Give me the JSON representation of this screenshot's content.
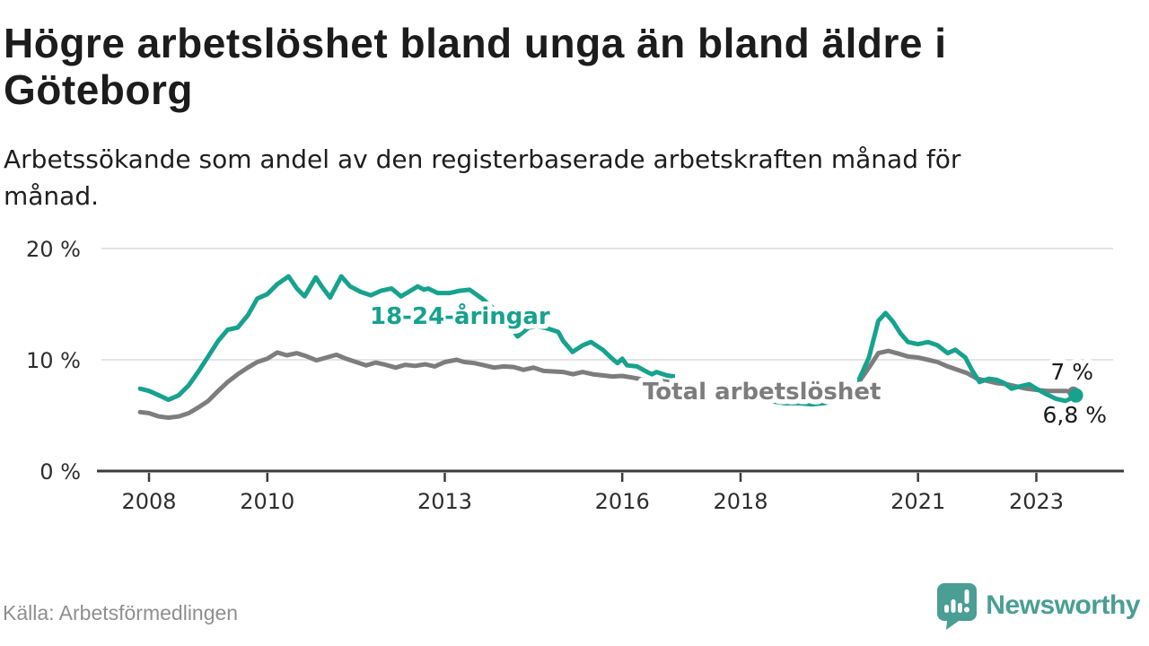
{
  "header": {
    "title": "Högre arbetslöshet bland unga än bland äldre i Göteborg",
    "subtitle": "Arbetssökande som andel av den registerbaserade arbetskraften månad för månad."
  },
  "footer": {
    "source": "Källa: Arbetsförmedlingen",
    "brand_name": "Newsworthy",
    "brand_icon": "newsworthy-speech-bubble-bar-chart-icon"
  },
  "colors": {
    "youth_line": "#17A28E",
    "total_line": "#7D7D7D",
    "grid": "#DCDCDC",
    "axis": "#3B3B3B",
    "tick_text": "#2E2E2E",
    "title_text": "#1C1C1C",
    "source_text": "#8F8F8F",
    "brand_teal": "#4A9E94"
  },
  "chart_data": {
    "type": "line",
    "title": "Högre arbetslöshet bland unga än bland äldre i Göteborg",
    "subtitle": "Arbetssökande som andel av den registerbaserade arbetskraften månad för månad.",
    "xlabel": "",
    "ylabel": "",
    "y_unit": "%",
    "ylim": [
      0,
      20
    ],
    "xlim": [
      2007.1,
      2024.5
    ],
    "grid": "horizontal",
    "legend_position": "inline-labels",
    "y_axis": {
      "ticks": [
        {
          "value": 0,
          "label": "0 %"
        },
        {
          "value": 10,
          "label": "10 %"
        },
        {
          "value": 20,
          "label": "20 %"
        }
      ]
    },
    "x_axis": {
      "ticks": [
        {
          "value": 2008,
          "label": "2008"
        },
        {
          "value": 2010,
          "label": "2010"
        },
        {
          "value": 2013,
          "label": "2013"
        },
        {
          "value": 2016,
          "label": "2016"
        },
        {
          "value": 2018,
          "label": "2018"
        },
        {
          "value": 2021,
          "label": "2021"
        },
        {
          "value": 2023,
          "label": "2023"
        }
      ]
    },
    "series": [
      {
        "key": "total",
        "name": "Total arbetslöshet",
        "color": "#7D7D7D",
        "end_value_label": "7 %",
        "points": [
          [
            2007.85,
            5.3
          ],
          [
            2008.0,
            5.2
          ],
          [
            2008.17,
            4.9
          ],
          [
            2008.33,
            4.8
          ],
          [
            2008.5,
            4.9
          ],
          [
            2008.67,
            5.2
          ],
          [
            2008.83,
            5.7
          ],
          [
            2009.0,
            6.3
          ],
          [
            2009.17,
            7.2
          ],
          [
            2009.33,
            8.0
          ],
          [
            2009.5,
            8.7
          ],
          [
            2009.67,
            9.3
          ],
          [
            2009.83,
            9.8
          ],
          [
            2010.0,
            10.1
          ],
          [
            2010.17,
            10.65
          ],
          [
            2010.33,
            10.4
          ],
          [
            2010.5,
            10.6
          ],
          [
            2010.67,
            10.3
          ],
          [
            2010.83,
            9.95
          ],
          [
            2011.0,
            10.2
          ],
          [
            2011.17,
            10.45
          ],
          [
            2011.33,
            10.1
          ],
          [
            2011.5,
            9.8
          ],
          [
            2011.67,
            9.5
          ],
          [
            2011.83,
            9.75
          ],
          [
            2012.0,
            9.55
          ],
          [
            2012.17,
            9.3
          ],
          [
            2012.33,
            9.55
          ],
          [
            2012.5,
            9.45
          ],
          [
            2012.67,
            9.6
          ],
          [
            2012.83,
            9.4
          ],
          [
            2013.0,
            9.8
          ],
          [
            2013.2,
            10.0
          ],
          [
            2013.33,
            9.8
          ],
          [
            2013.5,
            9.7
          ],
          [
            2013.67,
            9.5
          ],
          [
            2013.83,
            9.3
          ],
          [
            2014.0,
            9.4
          ],
          [
            2014.17,
            9.35
          ],
          [
            2014.33,
            9.1
          ],
          [
            2014.5,
            9.3
          ],
          [
            2014.67,
            9.0
          ],
          [
            2014.83,
            8.95
          ],
          [
            2015.0,
            8.9
          ],
          [
            2015.17,
            8.7
          ],
          [
            2015.33,
            8.9
          ],
          [
            2015.5,
            8.7
          ],
          [
            2015.67,
            8.6
          ],
          [
            2015.83,
            8.5
          ],
          [
            2016.0,
            8.55
          ],
          [
            2016.17,
            8.4
          ],
          [
            2016.33,
            8.25
          ],
          [
            2016.5,
            8.2
          ],
          [
            2016.67,
            8.1
          ],
          [
            2016.83,
            7.95
          ],
          [
            2017.0,
            7.8
          ],
          [
            2017.25,
            7.6
          ],
          [
            2017.5,
            7.5
          ],
          [
            2017.75,
            7.3
          ],
          [
            2018.0,
            7.1
          ],
          [
            2018.25,
            6.9
          ],
          [
            2018.5,
            6.7
          ],
          [
            2018.75,
            6.5
          ],
          [
            2019.0,
            6.4
          ],
          [
            2019.25,
            6.4
          ],
          [
            2019.5,
            6.6
          ],
          [
            2019.75,
            7.0
          ],
          [
            2020.0,
            8.0
          ],
          [
            2020.17,
            9.3
          ],
          [
            2020.33,
            10.6
          ],
          [
            2020.5,
            10.8
          ],
          [
            2020.67,
            10.55
          ],
          [
            2020.83,
            10.3
          ],
          [
            2021.0,
            10.2
          ],
          [
            2021.17,
            10.0
          ],
          [
            2021.33,
            9.8
          ],
          [
            2021.5,
            9.4
          ],
          [
            2021.67,
            9.1
          ],
          [
            2021.83,
            8.8
          ],
          [
            2022.0,
            8.3
          ],
          [
            2022.17,
            8.1
          ],
          [
            2022.33,
            7.9
          ],
          [
            2022.5,
            7.8
          ],
          [
            2022.67,
            7.6
          ],
          [
            2022.83,
            7.4
          ],
          [
            2023.0,
            7.3
          ],
          [
            2023.17,
            7.2
          ],
          [
            2023.33,
            7.2
          ],
          [
            2023.5,
            7.2
          ],
          [
            2023.67,
            7.0
          ]
        ]
      },
      {
        "key": "youth",
        "name": "18-24-åringar",
        "color": "#17A28E",
        "end_value_label": "6,8 %",
        "points": [
          [
            2007.85,
            7.4
          ],
          [
            2008.0,
            7.2
          ],
          [
            2008.17,
            6.8
          ],
          [
            2008.33,
            6.4
          ],
          [
            2008.5,
            6.8
          ],
          [
            2008.67,
            7.7
          ],
          [
            2008.83,
            8.9
          ],
          [
            2009.0,
            10.3
          ],
          [
            2009.17,
            11.7
          ],
          [
            2009.33,
            12.7
          ],
          [
            2009.5,
            12.9
          ],
          [
            2009.67,
            14.0
          ],
          [
            2009.83,
            15.5
          ],
          [
            2010.0,
            15.9
          ],
          [
            2010.17,
            16.8
          ],
          [
            2010.36,
            17.5
          ],
          [
            2010.5,
            16.4
          ],
          [
            2010.63,
            15.7
          ],
          [
            2010.82,
            17.4
          ],
          [
            2010.92,
            16.6
          ],
          [
            2011.06,
            15.6
          ],
          [
            2011.25,
            17.5
          ],
          [
            2011.4,
            16.6
          ],
          [
            2011.58,
            16.1
          ],
          [
            2011.75,
            15.8
          ],
          [
            2011.92,
            16.2
          ],
          [
            2012.1,
            16.4
          ],
          [
            2012.26,
            15.7
          ],
          [
            2012.42,
            16.2
          ],
          [
            2012.54,
            16.6
          ],
          [
            2012.65,
            16.3
          ],
          [
            2012.72,
            16.4
          ],
          [
            2012.88,
            16.0
          ],
          [
            2013.08,
            16.0
          ],
          [
            2013.25,
            16.2
          ],
          [
            2013.42,
            16.3
          ],
          [
            2013.63,
            15.5
          ],
          [
            2013.83,
            14.6
          ],
          [
            2014.0,
            13.8
          ],
          [
            2014.23,
            12.1
          ],
          [
            2014.42,
            12.9
          ],
          [
            2014.58,
            13.0
          ],
          [
            2014.75,
            12.8
          ],
          [
            2014.92,
            12.5
          ],
          [
            2015.0,
            11.7
          ],
          [
            2015.16,
            10.7
          ],
          [
            2015.33,
            11.3
          ],
          [
            2015.47,
            11.6
          ],
          [
            2015.67,
            10.9
          ],
          [
            2015.83,
            10.1
          ],
          [
            2015.92,
            9.7
          ],
          [
            2016.0,
            10.1
          ],
          [
            2016.08,
            9.5
          ],
          [
            2016.25,
            9.4
          ],
          [
            2016.42,
            8.9
          ],
          [
            2016.5,
            8.7
          ],
          [
            2016.58,
            8.9
          ],
          [
            2016.75,
            8.6
          ],
          [
            2016.88,
            8.5
          ],
          [
            2017.0,
            8.3
          ],
          [
            2017.25,
            7.9
          ],
          [
            2017.5,
            7.6
          ],
          [
            2017.75,
            7.3
          ],
          [
            2018.0,
            7.0
          ],
          [
            2018.25,
            6.6
          ],
          [
            2018.5,
            6.3
          ],
          [
            2018.75,
            6.1
          ],
          [
            2019.0,
            6.1
          ],
          [
            2019.2,
            6.0
          ],
          [
            2019.4,
            6.1
          ],
          [
            2019.6,
            6.3
          ],
          [
            2019.8,
            7.0
          ],
          [
            2020.0,
            8.2
          ],
          [
            2020.17,
            10.2
          ],
          [
            2020.33,
            13.5
          ],
          [
            2020.45,
            14.2
          ],
          [
            2020.58,
            13.4
          ],
          [
            2020.7,
            12.4
          ],
          [
            2020.83,
            11.6
          ],
          [
            2021.0,
            11.4
          ],
          [
            2021.17,
            11.6
          ],
          [
            2021.33,
            11.3
          ],
          [
            2021.5,
            10.6
          ],
          [
            2021.63,
            10.9
          ],
          [
            2021.8,
            10.2
          ],
          [
            2021.92,
            9.0
          ],
          [
            2022.04,
            8.0
          ],
          [
            2022.2,
            8.3
          ],
          [
            2022.33,
            8.2
          ],
          [
            2022.46,
            7.9
          ],
          [
            2022.58,
            7.4
          ],
          [
            2022.71,
            7.6
          ],
          [
            2022.88,
            7.8
          ],
          [
            2023.0,
            7.4
          ],
          [
            2023.17,
            6.9
          ],
          [
            2023.33,
            6.5
          ],
          [
            2023.5,
            6.3
          ],
          [
            2023.67,
            6.8
          ]
        ]
      }
    ],
    "annotations": {
      "youth_label": "18-24-åringar",
      "total_label": "Total arbetslöshet",
      "end_label_total": "7 %",
      "end_label_youth": "6,8 %"
    }
  }
}
